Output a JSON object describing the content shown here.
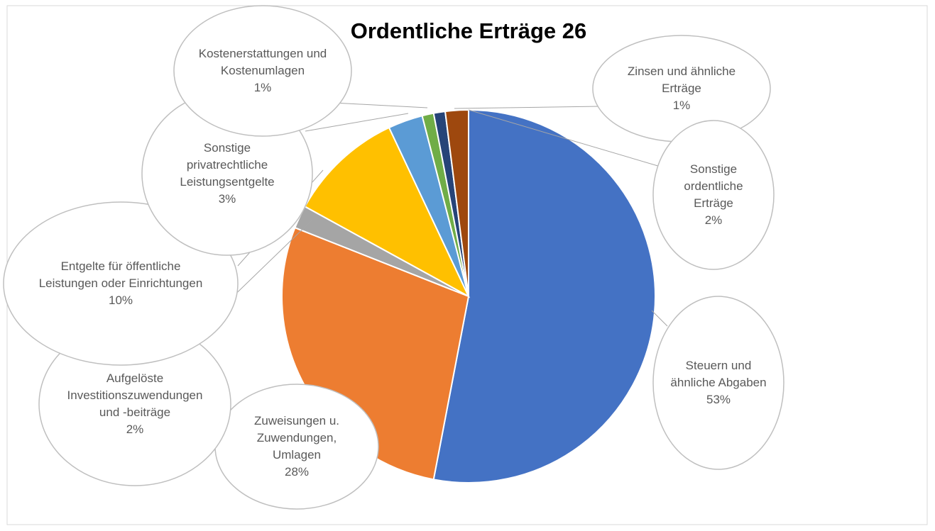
{
  "chart_data": {
    "type": "pie",
    "title": "Ordentliche Erträge 26",
    "categories": [
      "Steuern und ähnliche Abgaben",
      "Zuweisungen u. Zuwendungen, Umlagen",
      "Aufgelöste Investitionszuwendungen und -beiträge",
      "Entgelte für öffentliche Leistungen oder Einrichtungen",
      "Sonstige privatrechtliche Leistungsentgelte",
      "Kostenerstattungen und Kostenumlagen",
      "Zinsen und ähnliche Erträge",
      "Sonstige ordentliche Erträge"
    ],
    "values": [
      53,
      28,
      2,
      10,
      3,
      1,
      1,
      2
    ],
    "value_labels": [
      "53%",
      "28%",
      "2%",
      "10%",
      "3%",
      "1%",
      "1%",
      "2%"
    ],
    "colors": [
      "#4472c4",
      "#ed7d31",
      "#a5a5a5",
      "#ffc000",
      "#5b9bd5",
      "#70ad47",
      "#264478",
      "#9e480e"
    ]
  }
}
